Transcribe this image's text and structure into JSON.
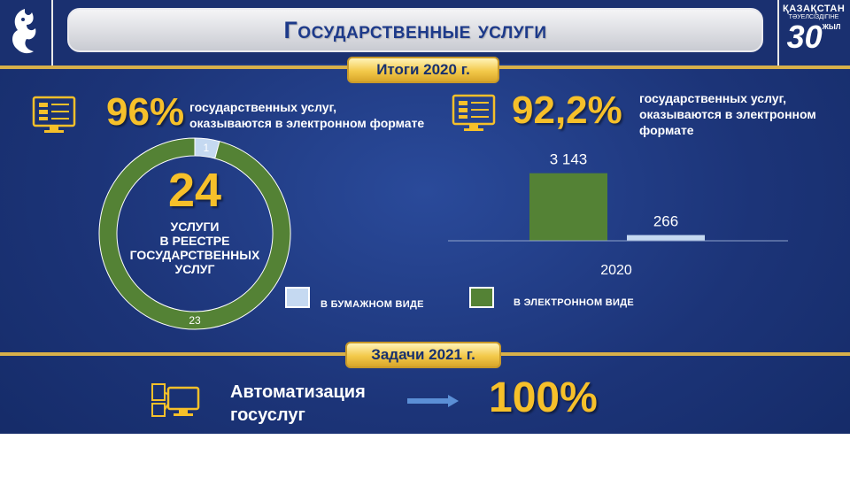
{
  "header": {
    "title": "Государственные услуги",
    "logo_right_line1": "ҚАЗАҚСТАН",
    "logo_right_line2": "ТӘУЕЛСІЗДІГІНЕ",
    "logo_right_number": "30",
    "logo_right_suffix": "ЖЫЛ"
  },
  "sections": {
    "results_badge": "Итоги  2020 г.",
    "tasks_badge": "Задачи 2021 г."
  },
  "left_stat": {
    "percent": "96%",
    "description_line1": "государственных услуг,",
    "description_line2": "оказываются в электронном формате",
    "center_number": "24",
    "center_line1": "УСЛУГИ",
    "center_line2": "В РЕЕСТРЕ",
    "center_line3": "ГОСУДАРСТВЕННЫХ",
    "center_line4": "УСЛУГ"
  },
  "right_stat": {
    "percent": "92,2%",
    "description_line1": "государственных услуг,",
    "description_line2": "оказываются в электронном",
    "description_line3": "формате"
  },
  "legend": {
    "paper": "В БУМАЖНОМ  ВИДЕ",
    "electronic": "В ЭЛЕКТРОННОМ  ВИДЕ"
  },
  "colors": {
    "paper": "#c5d9f1",
    "electronic": "#548235",
    "accent": "#f6c02a"
  },
  "task": {
    "line1": "Автоматизация",
    "line2": "госуслуг",
    "percent": "100%"
  },
  "chart_data": [
    {
      "type": "pie",
      "variant": "donut",
      "labels": [
        "В БУМАЖНОМ  ВИДЕ",
        "В ЭЛЕКТРОННОМ  ВИДЕ"
      ],
      "values": [
        1,
        23
      ],
      "data_labels": [
        "1",
        "23"
      ]
    },
    {
      "type": "bar",
      "categories": [
        "2020"
      ],
      "series": [
        {
          "name": "В ЭЛЕКТРОННОМ  ВИДЕ",
          "values": [
            3143
          ],
          "labels": [
            "3 143"
          ]
        },
        {
          "name": "В БУМАЖНОМ  ВИДЕ",
          "values": [
            266
          ],
          "labels": [
            "266"
          ]
        }
      ],
      "ylim": [
        0,
        3500
      ],
      "grid": false
    }
  ]
}
